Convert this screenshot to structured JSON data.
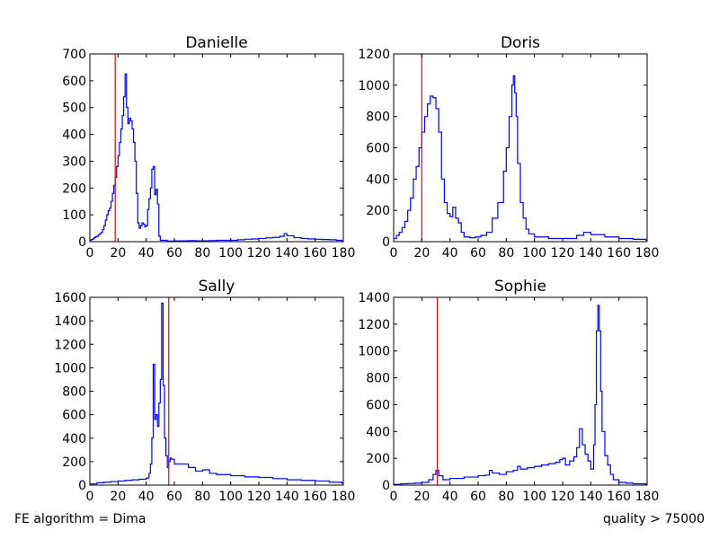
{
  "footer": {
    "left": "FE algorithm = Dima",
    "right": "quality > 75000"
  },
  "colors": {
    "histogram": "#0000ff",
    "threshold_line": "#ff0000",
    "axes": "#000000"
  },
  "chart_data": [
    {
      "type": "histogram-step",
      "title": "Danielle",
      "xlim": [
        0,
        180
      ],
      "ylim": [
        0,
        700
      ],
      "xticks": [
        0,
        20,
        40,
        60,
        80,
        100,
        120,
        140,
        160,
        180
      ],
      "yticks": [
        0,
        100,
        200,
        300,
        400,
        500,
        600,
        700
      ],
      "threshold_x": 18,
      "bin_width": 1,
      "x": [
        0,
        1,
        2,
        3,
        4,
        5,
        6,
        7,
        8,
        9,
        10,
        11,
        12,
        13,
        14,
        15,
        16,
        17,
        18,
        19,
        20,
        21,
        22,
        23,
        24,
        25,
        26,
        27,
        28,
        29,
        30,
        31,
        32,
        33,
        34,
        35,
        36,
        37,
        38,
        39,
        40,
        41,
        42,
        43,
        44,
        45,
        46,
        47,
        48,
        49,
        50,
        55,
        60,
        65,
        70,
        75,
        80,
        85,
        90,
        95,
        100,
        105,
        110,
        115,
        120,
        125,
        130,
        135,
        138,
        140,
        145,
        150,
        155,
        160,
        165,
        170,
        175,
        179
      ],
      "values": [
        5,
        8,
        10,
        15,
        18,
        20,
        25,
        30,
        35,
        45,
        60,
        80,
        100,
        115,
        125,
        150,
        180,
        210,
        240,
        280,
        320,
        370,
        420,
        470,
        540,
        625,
        500,
        440,
        460,
        450,
        420,
        370,
        300,
        180,
        70,
        50,
        60,
        70,
        65,
        55,
        60,
        120,
        160,
        200,
        270,
        280,
        175,
        195,
        140,
        20,
        5,
        2,
        3,
        3,
        4,
        3,
        3,
        4,
        5,
        5,
        5,
        7,
        9,
        10,
        12,
        14,
        16,
        20,
        30,
        22,
        15,
        12,
        10,
        9,
        8,
        7,
        5,
        2
      ]
    },
    {
      "type": "histogram-step",
      "title": "Doris",
      "xlim": [
        0,
        180
      ],
      "ylim": [
        0,
        1200
      ],
      "xticks": [
        0,
        20,
        40,
        60,
        80,
        100,
        120,
        140,
        160,
        180
      ],
      "yticks": [
        0,
        200,
        400,
        600,
        800,
        1000,
        1200
      ],
      "threshold_x": 20,
      "bin_width": 1,
      "x": [
        0,
        2,
        4,
        6,
        8,
        10,
        12,
        14,
        16,
        18,
        20,
        22,
        24,
        26,
        28,
        30,
        32,
        34,
        36,
        38,
        40,
        42,
        44,
        46,
        48,
        50,
        54,
        58,
        62,
        66,
        70,
        74,
        78,
        80,
        82,
        84,
        85,
        86,
        87,
        88,
        90,
        92,
        94,
        96,
        100,
        110,
        120,
        130,
        135,
        140,
        150,
        160,
        170,
        179
      ],
      "values": [
        20,
        40,
        60,
        90,
        130,
        200,
        280,
        400,
        480,
        600,
        700,
        800,
        880,
        930,
        920,
        850,
        700,
        400,
        250,
        180,
        160,
        220,
        150,
        120,
        60,
        30,
        25,
        30,
        40,
        60,
        150,
        250,
        450,
        600,
        800,
        1000,
        1060,
        950,
        800,
        500,
        250,
        150,
        80,
        50,
        30,
        20,
        20,
        40,
        60,
        45,
        30,
        20,
        15,
        10
      ]
    },
    {
      "type": "histogram-step",
      "title": "Sally",
      "xlim": [
        0,
        180
      ],
      "ylim": [
        0,
        1600
      ],
      "xticks": [
        0,
        20,
        40,
        60,
        80,
        100,
        120,
        140,
        160,
        180
      ],
      "yticks": [
        0,
        200,
        400,
        600,
        800,
        1000,
        1200,
        1400,
        1600
      ],
      "threshold_x": 56,
      "bin_width": 1,
      "x": [
        0,
        5,
        10,
        15,
        20,
        25,
        30,
        35,
        40,
        42,
        43,
        44,
        45,
        46,
        47,
        48,
        49,
        50,
        51,
        52,
        53,
        54,
        55,
        56,
        57,
        58,
        60,
        65,
        70,
        75,
        80,
        85,
        90,
        100,
        110,
        120,
        130,
        140,
        150,
        160,
        170,
        179
      ],
      "values": [
        10,
        20,
        25,
        30,
        35,
        40,
        45,
        50,
        60,
        100,
        180,
        400,
        1030,
        560,
        600,
        500,
        700,
        900,
        1550,
        850,
        400,
        250,
        150,
        200,
        230,
        220,
        180,
        180,
        150,
        120,
        130,
        100,
        90,
        80,
        70,
        65,
        55,
        45,
        40,
        35,
        25,
        15
      ]
    },
    {
      "type": "histogram-step",
      "title": "Sophie",
      "xlim": [
        0,
        180
      ],
      "ylim": [
        0,
        1400
      ],
      "xticks": [
        0,
        20,
        40,
        60,
        80,
        100,
        120,
        140,
        160,
        180
      ],
      "yticks": [
        0,
        200,
        400,
        600,
        800,
        1000,
        1200,
        1400
      ],
      "threshold_x": 31,
      "bin_width": 1,
      "x": [
        0,
        5,
        10,
        15,
        20,
        25,
        28,
        30,
        32,
        35,
        40,
        50,
        60,
        65,
        68,
        70,
        75,
        80,
        85,
        88,
        90,
        95,
        100,
        105,
        110,
        115,
        118,
        120,
        122,
        125,
        128,
        130,
        132,
        134,
        136,
        138,
        140,
        142,
        143,
        144,
        145,
        146,
        147,
        148,
        150,
        152,
        154,
        156,
        160,
        165,
        170,
        179
      ],
      "values": [
        5,
        10,
        12,
        15,
        20,
        40,
        80,
        110,
        70,
        40,
        50,
        60,
        70,
        75,
        110,
        90,
        80,
        100,
        110,
        140,
        120,
        130,
        140,
        150,
        160,
        170,
        190,
        200,
        150,
        180,
        210,
        280,
        420,
        300,
        230,
        180,
        120,
        300,
        600,
        1150,
        1340,
        1150,
        700,
        400,
        220,
        150,
        80,
        40,
        20,
        15,
        10,
        5
      ]
    }
  ]
}
